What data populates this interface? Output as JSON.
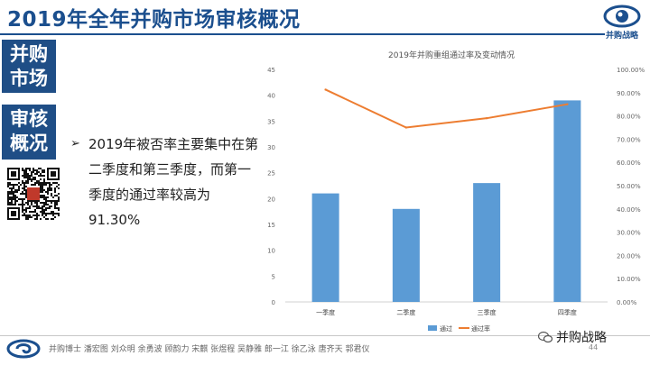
{
  "page": {
    "title": "2019年全年并购市场审核概况",
    "logo_text": "并购战略",
    "side_a": [
      "并购",
      "市场"
    ],
    "side_b": [
      "审核",
      "概况"
    ],
    "bullet": "2019年被否率主要集中在第二季度和第三季度，而第一季度的通过率较高为91.30%",
    "footer_names": "并购博士 潘宏图  刘众明  余勇波  顾韵力  宋麒  张煜程  吴静雅  郎一江  徐乙泳  唐齐天  郭君仪",
    "page_number": "44",
    "wechat_label": "并购战略"
  },
  "colors": {
    "primary": "#1f4e86",
    "bar": "#5b9bd5",
    "line": "#ed7d31"
  },
  "icons": [
    "eye-logo-icon",
    "qr-code-icon",
    "arrow-bullet-icon",
    "footer-logo-icon",
    "wechat-icon"
  ],
  "chart_data": {
    "type": "bar",
    "title": "2019年并购重组通过率及变动情况",
    "categories": [
      "一季度",
      "二季度",
      "三季度",
      "四季度"
    ],
    "series": [
      {
        "name": "通过",
        "type": "bar",
        "axis": "left",
        "values": [
          21,
          18,
          23,
          39
        ]
      },
      {
        "name": "通过率",
        "type": "line",
        "axis": "right",
        "values": [
          0.913,
          0.75,
          0.79,
          0.85
        ]
      }
    ],
    "y_left": {
      "min": 0,
      "max": 45,
      "step": 5,
      "ticks": [
        "0",
        "5",
        "10",
        "15",
        "20",
        "25",
        "30",
        "35",
        "40",
        "45"
      ]
    },
    "y_right": {
      "min": 0,
      "max": 1,
      "step": 0.1,
      "ticks": [
        "0.00%",
        "10.00%",
        "20.00%",
        "30.00%",
        "40.00%",
        "50.00%",
        "60.00%",
        "70.00%",
        "80.00%",
        "90.00%",
        "100.00%"
      ]
    },
    "legend": {
      "position": "bottom",
      "items": [
        "通过",
        "通过率"
      ]
    },
    "grid": false
  }
}
